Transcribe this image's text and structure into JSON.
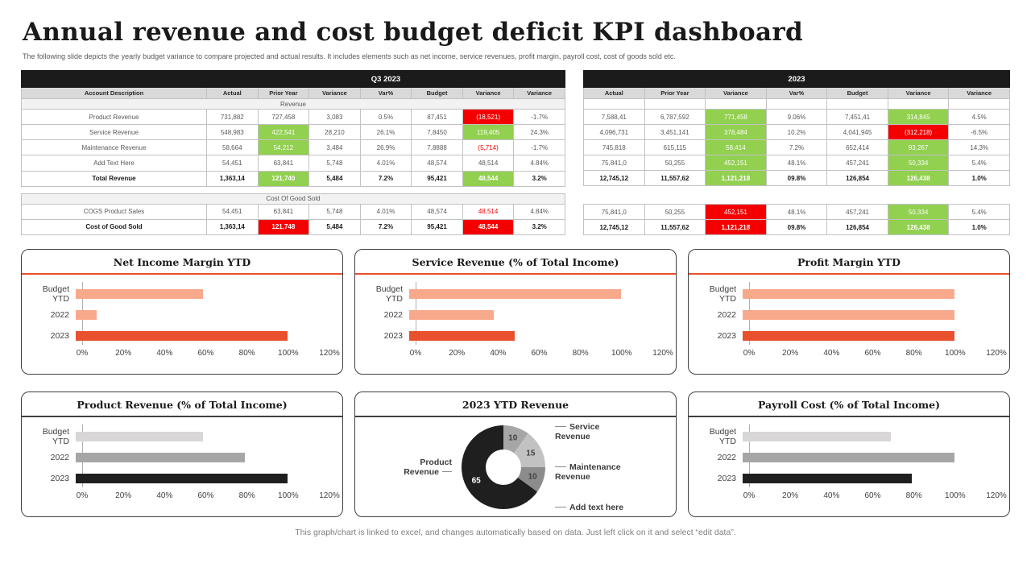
{
  "slide": {
    "title": "Annual revenue and cost budget deficit KPI dashboard",
    "subtitle": "The following slide depicts the yearly budget variance to compare projected and actual results. It includes elements such as net income, service revenues, profit margin, payroll cost, cost of goods sold etc.",
    "footer": "This graph/chart is linked to excel, and changes automatically based on data. Just left click on it and select “edit data”."
  },
  "tables": {
    "left": {
      "period": "Q3 2023",
      "headers": [
        "Account Description",
        "Actual",
        "Prior Year",
        "Variance",
        "Var%",
        "Budget",
        "Variance",
        "Variance"
      ],
      "rows": [
        {
          "kind": "section",
          "label": "Revenue"
        },
        {
          "kind": "data",
          "label": "Product  Revenue",
          "cells": [
            {
              "t": "731,882"
            },
            {
              "t": "727,458"
            },
            {
              "t": "3,083"
            },
            {
              "t": "0.5%"
            },
            {
              "t": "87,451"
            },
            {
              "t": "(18,521)",
              "s": "r"
            },
            {
              "t": "-1.7%"
            }
          ]
        },
        {
          "kind": "data",
          "label": "Service Revenue",
          "cells": [
            {
              "t": "548,983"
            },
            {
              "t": "422,541",
              "s": "g"
            },
            {
              "t": "28,210"
            },
            {
              "t": "26.1%"
            },
            {
              "t": "7,8450"
            },
            {
              "t": "119,405",
              "s": "g"
            },
            {
              "t": "24.3%"
            }
          ]
        },
        {
          "kind": "data",
          "label": "Maintenance  Revenue",
          "cells": [
            {
              "t": "58,664"
            },
            {
              "t": "54,212",
              "s": "g"
            },
            {
              "t": "3,484"
            },
            {
              "t": "26.9%"
            },
            {
              "t": "7,8888"
            },
            {
              "t": "(5,714)",
              "s": "rt"
            },
            {
              "t": "-1.7%"
            }
          ]
        },
        {
          "kind": "data",
          "label": "Add Text Here",
          "cells": [
            {
              "t": "54,451"
            },
            {
              "t": "63,841"
            },
            {
              "t": "5,748"
            },
            {
              "t": "4.01%"
            },
            {
              "t": "48,574"
            },
            {
              "t": "48,514"
            },
            {
              "t": "4.84%"
            }
          ]
        },
        {
          "kind": "total",
          "label": "Total Revenue",
          "cells": [
            {
              "t": "1,363,14"
            },
            {
              "t": "121,740",
              "s": "g"
            },
            {
              "t": "5,484"
            },
            {
              "t": "7.2%"
            },
            {
              "t": "95,421"
            },
            {
              "t": "48,544",
              "s": "g"
            },
            {
              "t": "3.2%"
            }
          ]
        },
        {
          "kind": "gap",
          "h": 9
        },
        {
          "kind": "section",
          "label": "Cost Of Good Sold"
        },
        {
          "kind": "data",
          "label": "COGS Product Sales",
          "cells": [
            {
              "t": "54,451"
            },
            {
              "t": "63,841"
            },
            {
              "t": "5,748"
            },
            {
              "t": "4.01%"
            },
            {
              "t": "48,574"
            },
            {
              "t": "48,514",
              "s": "rt"
            },
            {
              "t": "4.84%"
            }
          ]
        },
        {
          "kind": "total",
          "label": "Cost of Good Sold",
          "cells": [
            {
              "t": "1,363,14"
            },
            {
              "t": "121,748",
              "s": "r"
            },
            {
              "t": "5,484"
            },
            {
              "t": "7.2%"
            },
            {
              "t": "95,421"
            },
            {
              "t": "48,544",
              "s": "r"
            },
            {
              "t": "3.2%"
            }
          ]
        }
      ]
    },
    "right": {
      "period": "2023",
      "headers": [
        "Actual",
        "Prior Year",
        "Variance",
        "Var%",
        "Budget",
        "Variance",
        "Variance"
      ],
      "rows": [
        {
          "kind": "blank",
          "h": 13
        },
        {
          "kind": "data",
          "cells": [
            {
              "t": "7,588,41"
            },
            {
              "t": "6,787,592"
            },
            {
              "t": "771,458",
              "s": "g"
            },
            {
              "t": "9.06%"
            },
            {
              "t": "7,451,41"
            },
            {
              "t": "314,845",
              "s": "g"
            },
            {
              "t": "4.5%"
            }
          ]
        },
        {
          "kind": "data",
          "cells": [
            {
              "t": "4,096,731"
            },
            {
              "t": "3,451,141"
            },
            {
              "t": "378,484",
              "s": "g"
            },
            {
              "t": "10.2%"
            },
            {
              "t": "4,041,945"
            },
            {
              "t": "(312,218)",
              "s": "r"
            },
            {
              "t": "-6.5%"
            }
          ]
        },
        {
          "kind": "data",
          "cells": [
            {
              "t": "745,818"
            },
            {
              "t": "615,115"
            },
            {
              "t": "58,414",
              "s": "g"
            },
            {
              "t": "7.2%"
            },
            {
              "t": "652,414"
            },
            {
              "t": "93,267",
              "s": "g"
            },
            {
              "t": "14.3%"
            }
          ]
        },
        {
          "kind": "data",
          "cells": [
            {
              "t": "75,841,0"
            },
            {
              "t": "50,255"
            },
            {
              "t": "452,151",
              "s": "g"
            },
            {
              "t": "48.1%"
            },
            {
              "t": "457,241"
            },
            {
              "t": "50,334",
              "s": "g"
            },
            {
              "t": "5.4%"
            }
          ]
        },
        {
          "kind": "total",
          "cells": [
            {
              "t": "12,745,12"
            },
            {
              "t": "11,557,62"
            },
            {
              "t": "1,121,218",
              "s": "g"
            },
            {
              "t": "09.8%"
            },
            {
              "t": "126,854"
            },
            {
              "t": "126,438",
              "s": "g"
            },
            {
              "t": "1.0%"
            }
          ]
        },
        {
          "kind": "gap",
          "h": 23
        },
        {
          "kind": "data",
          "cells": [
            {
              "t": "75,841,0"
            },
            {
              "t": "50,255"
            },
            {
              "t": "452,151",
              "s": "r"
            },
            {
              "t": "48.1%"
            },
            {
              "t": "457,241"
            },
            {
              "t": "50,334",
              "s": "g"
            },
            {
              "t": "5.4%"
            }
          ]
        },
        {
          "kind": "total",
          "cells": [
            {
              "t": "12,745,12"
            },
            {
              "t": "11,557,62"
            },
            {
              "t": "1,121,218",
              "s": "r"
            },
            {
              "t": "09.8%"
            },
            {
              "t": "126,854"
            },
            {
              "t": "126,438",
              "s": "g"
            },
            {
              "t": "1.0%"
            }
          ]
        }
      ]
    }
  },
  "chart_data": [
    {
      "type": "bar",
      "title": "Net Income  Margin YTD",
      "categories": [
        "Budget YTD",
        "2022",
        "2023"
      ],
      "values": [
        60,
        10,
        100
      ],
      "colors": [
        "#F8A98B",
        "#F8A98B",
        "#E8502E"
      ],
      "accent": "#E8502E",
      "xticks": [
        "0%",
        "20%",
        "40%",
        "60%",
        "80%",
        "100%",
        "120%"
      ],
      "xlim": [
        0,
        120
      ],
      "xlabel": "",
      "ylabel": ""
    },
    {
      "type": "bar",
      "title": "Service Revenue (% of Total Income)",
      "categories": [
        "Budget YTD",
        "2022",
        "2023"
      ],
      "values": [
        100,
        40,
        50
      ],
      "colors": [
        "#F8A98B",
        "#F8A98B",
        "#E8502E"
      ],
      "accent": "#E8502E",
      "xticks": [
        "0%",
        "20%",
        "40%",
        "60%",
        "80%",
        "100%",
        "120%"
      ],
      "xlim": [
        0,
        120
      ],
      "xlabel": "",
      "ylabel": ""
    },
    {
      "type": "bar",
      "title": "Profit Margin YTD",
      "categories": [
        "Budget YTD",
        "2022",
        "2023"
      ],
      "values": [
        100,
        100,
        100
      ],
      "colors": [
        "#F8A98B",
        "#F8A98B",
        "#E8502E"
      ],
      "accent": "#E8502E",
      "xticks": [
        "0%",
        "20%",
        "40%",
        "60%",
        "80%",
        "100%",
        "120%"
      ],
      "xlim": [
        0,
        120
      ],
      "xlabel": "",
      "ylabel": ""
    },
    {
      "type": "bar",
      "title": "Product  Revenue (% of Total Income)",
      "categories": [
        "Budget YTD",
        "2022",
        "2023"
      ],
      "values": [
        60,
        80,
        100
      ],
      "colors": [
        "#D8D6D6",
        "#A6A6A6",
        "#1F1F1F"
      ],
      "accent": "#404040",
      "xticks": [
        "0%",
        "20%",
        "40%",
        "60%",
        "80%",
        "100%",
        "120%"
      ],
      "xlim": [
        0,
        120
      ],
      "xlabel": "",
      "ylabel": ""
    },
    {
      "type": "donut",
      "title": "2023 YTD Revenue",
      "accent": "#404040",
      "slices": [
        {
          "label": "Service Revenue",
          "value": 10,
          "color": "#A6A6A6"
        },
        {
          "label": "Maintenance Revenue",
          "value": 15,
          "color": "#C3C2C2"
        },
        {
          "label": "Add text here",
          "value": 10,
          "color": "#8C8C8C"
        },
        {
          "label": "Product Revenue",
          "value": 65,
          "color": "#1F1F1F",
          "text_color": "#FFFFFF"
        }
      ],
      "label_layout": {
        "left": [
          3
        ],
        "right": [
          0,
          1,
          2
        ]
      }
    },
    {
      "type": "bar",
      "title": "Payroll Cost (% of Total Income)",
      "categories": [
        "Budget YTD",
        "2022",
        "2023"
      ],
      "values": [
        70,
        100,
        80
      ],
      "colors": [
        "#D8D6D6",
        "#A6A6A6",
        "#1F1F1F"
      ],
      "accent": "#404040",
      "xticks": [
        "0%",
        "20%",
        "40%",
        "60%",
        "80%",
        "100%",
        "120%"
      ],
      "xlim": [
        0,
        120
      ],
      "xlabel": "",
      "ylabel": ""
    }
  ]
}
